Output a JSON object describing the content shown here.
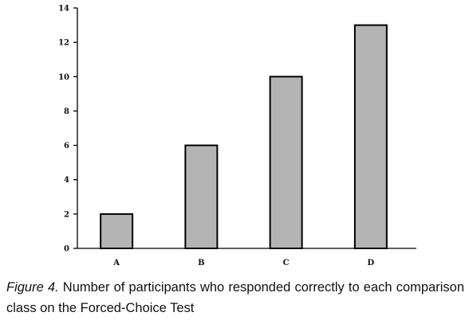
{
  "chart_data": {
    "type": "bar",
    "categories": [
      "A",
      "B",
      "C",
      "D"
    ],
    "values": [
      2,
      6,
      10,
      13
    ],
    "ylim": [
      0,
      14
    ],
    "yticks": [
      "0",
      "2",
      "4",
      "6",
      "8",
      "10",
      "12",
      "14"
    ],
    "xlabel": "",
    "ylabel": "",
    "grid": false,
    "bar_color": "#b4b4b4"
  },
  "caption": {
    "figure_label": "Figure 4.",
    "text": " Number of participants who responded correctly to each comparison class on the Forced-Choice Test"
  }
}
